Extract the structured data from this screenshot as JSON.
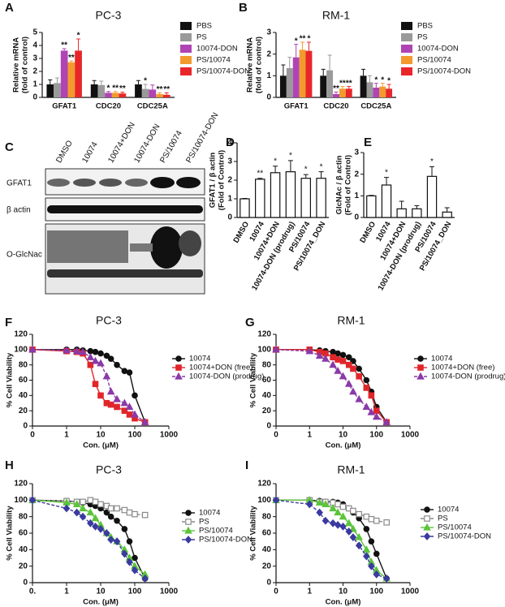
{
  "chart_data": [
    {
      "panel": "A",
      "type": "grouped_bar",
      "title": "PC-3",
      "ylabel": [
        "Relative mRNA",
        "(fold of control)"
      ],
      "categories": [
        "GFAT1",
        "CDC20",
        "CDC25A"
      ],
      "ylim": [
        0,
        5
      ],
      "yticks": [
        0,
        1,
        2,
        3,
        4,
        5
      ],
      "series": [
        {
          "name": "PBS",
          "color": "#111111",
          "values": [
            1,
            1,
            1
          ],
          "errors": [
            0.35,
            0.3,
            0.3
          ],
          "annotations": [
            null,
            null,
            null
          ]
        },
        {
          "name": "PS",
          "color": "#9a9a9a",
          "values": [
            1.1,
            0.95,
            0.65
          ],
          "errors": [
            0.4,
            0.3,
            0.35
          ],
          "annotations": [
            null,
            null,
            "*"
          ]
        },
        {
          "name": "10074-DON",
          "color": "#b044b4",
          "values": [
            3.6,
            0.35,
            0.6
          ],
          "errors": [
            0.15,
            0.1,
            0.35
          ],
          "annotations": [
            "**",
            "*",
            null
          ]
        },
        {
          "name": "PS/10074",
          "color": "#f39a2e",
          "values": [
            2.7,
            0.35,
            0.25
          ],
          "errors": [
            0.1,
            0.1,
            0.1
          ],
          "annotations": [
            "**",
            "**",
            "**"
          ]
        },
        {
          "name": "PS/10074-DON",
          "color": "#e8262a",
          "values": [
            3.6,
            0.3,
            0.2
          ],
          "errors": [
            0.9,
            0.1,
            0.15
          ],
          "annotations": [
            "*",
            "**",
            "**"
          ]
        }
      ]
    },
    {
      "panel": "B",
      "type": "grouped_bar",
      "title": "RM-1",
      "ylabel": [
        "Relative mRNA",
        "(fold of control)"
      ],
      "categories": [
        "GFAT1",
        "CDC20",
        "CDC25A"
      ],
      "ylim": [
        0,
        3
      ],
      "yticks": [
        0,
        1,
        2,
        3
      ],
      "series": [
        {
          "name": "PBS",
          "color": "#111111",
          "values": [
            1,
            1,
            1
          ],
          "errors": [
            0.5,
            0.3,
            0.3
          ],
          "annotations": [
            null,
            null,
            null
          ]
        },
        {
          "name": "PS",
          "color": "#9a9a9a",
          "values": [
            1.35,
            1.25,
            0.7
          ],
          "errors": [
            0.5,
            0.7,
            0.3
          ],
          "annotations": [
            null,
            null,
            null
          ]
        },
        {
          "name": "10074-DON",
          "color": "#b044b4",
          "values": [
            1.85,
            0.15,
            0.45
          ],
          "errors": [
            0.6,
            0.1,
            0.2
          ],
          "annotations": [
            "*",
            "**",
            "*"
          ]
        },
        {
          "name": "PS/10074",
          "color": "#f39a2e",
          "values": [
            2.2,
            0.4,
            0.5
          ],
          "errors": [
            0.35,
            0.1,
            0.15
          ],
          "annotations": [
            "**",
            "**",
            "*"
          ]
        },
        {
          "name": "PS/10074-DON",
          "color": "#e8262a",
          "values": [
            2.15,
            0.4,
            0.4
          ],
          "errors": [
            0.4,
            0.1,
            0.2
          ],
          "annotations": [
            "*",
            "**",
            "*"
          ]
        }
      ]
    },
    {
      "panel": "D",
      "type": "bar",
      "ylabel": [
        "GFAT1 / β actin",
        "(Fold of Control)"
      ],
      "categories": [
        "DMSO",
        "10074",
        "10074+DON",
        "10074-DON (prodrug)",
        "PS/10074",
        "PS/10074_DON"
      ],
      "values": [
        1,
        2.05,
        2.4,
        2.45,
        2.1,
        2.1
      ],
      "errors": [
        0.02,
        0.05,
        0.35,
        0.6,
        0.2,
        0.35
      ],
      "annotations": [
        null,
        "**",
        "*",
        "*",
        "*",
        "*"
      ],
      "ylim": [
        0,
        4
      ],
      "yticks": [
        0,
        1,
        2,
        3,
        4
      ]
    },
    {
      "panel": "E",
      "type": "bar",
      "ylabel": [
        "GlcNAc / β actin",
        "(Fold of Control)"
      ],
      "categories": [
        "DMSO",
        "10074",
        "10074+DON",
        "10074-DON (prodrug)",
        "PS/10074",
        "PS/10074_DON"
      ],
      "values": [
        1,
        1.5,
        0.4,
        0.4,
        1.9,
        0.25
      ],
      "errors": [
        0.02,
        0.35,
        0.35,
        0.15,
        0.45,
        0.2
      ],
      "annotations": [
        null,
        "*",
        null,
        null,
        "*",
        null
      ],
      "ylim": [
        0,
        3
      ],
      "yticks": [
        0,
        1,
        2,
        3
      ]
    },
    {
      "panel": "F",
      "type": "line",
      "title": "PC-3",
      "xlabel": "Con. (μM)",
      "ylabel": "% Cell Viability",
      "log_x": true,
      "x": [
        0,
        1,
        2,
        3,
        5,
        7,
        10,
        15,
        20,
        30,
        50,
        70,
        100,
        200
      ],
      "xlim": [
        0,
        1000
      ],
      "xticks": [
        0,
        1,
        10,
        100,
        1000
      ],
      "ylim": [
        0,
        120
      ],
      "yticks": [
        0,
        20,
        40,
        60,
        80,
        100,
        120
      ],
      "series": [
        {
          "name": "10074",
          "color": "#111111",
          "marker": "circle",
          "dashed": false,
          "values": [
            100,
            100,
            100,
            99,
            98,
            97,
            95,
            92,
            88,
            80,
            72,
            70,
            40,
            5
          ]
        },
        {
          "name": "10074+DON (free)",
          "color": "#e0262a",
          "marker": "square",
          "dashed": false,
          "values": [
            100,
            98,
            97,
            95,
            80,
            55,
            40,
            30,
            28,
            25,
            20,
            15,
            10,
            5
          ]
        },
        {
          "name": "10074-DON (prodrug)",
          "color": "#8a3aa8",
          "marker": "triangle",
          "dashed": true,
          "values": [
            100,
            99,
            98,
            97,
            90,
            85,
            82,
            65,
            45,
            35,
            30,
            25,
            15,
            5
          ]
        }
      ]
    },
    {
      "panel": "G",
      "type": "line",
      "title": "RM-1",
      "xlabel": "Con. (μM)",
      "ylabel": "% Cell Viability",
      "log_x": true,
      "x": [
        0,
        1,
        2,
        3,
        5,
        7,
        10,
        15,
        20,
        30,
        50,
        70,
        100,
        200
      ],
      "xlim": [
        0,
        1000
      ],
      "xticks": [
        0,
        1,
        10,
        100,
        1000
      ],
      "ylim": [
        0,
        120
      ],
      "yticks": [
        0,
        20,
        40,
        60,
        80,
        100,
        120
      ],
      "series": [
        {
          "name": "10074",
          "color": "#111111",
          "marker": "circle",
          "dashed": false,
          "values": [
            100,
            100,
            99,
            98,
            97,
            95,
            93,
            90,
            85,
            75,
            60,
            45,
            25,
            5
          ]
        },
        {
          "name": "10074+DON (free)",
          "color": "#e0262a",
          "marker": "square",
          "dashed": false,
          "values": [
            100,
            100,
            97,
            95,
            90,
            87,
            85,
            80,
            75,
            65,
            50,
            40,
            20,
            5
          ]
        },
        {
          "name": "10074-DON (prodrug)",
          "color": "#8a3aa8",
          "marker": "triangle",
          "dashed": true,
          "values": [
            100,
            98,
            92,
            88,
            80,
            72,
            65,
            55,
            45,
            35,
            25,
            18,
            12,
            5
          ]
        }
      ]
    },
    {
      "panel": "H",
      "type": "line",
      "title": "PC-3",
      "xlabel": "Con. (μM)",
      "ylabel": "% Cell Viability",
      "log_x": true,
      "x": [
        0,
        1,
        2,
        3,
        5,
        7,
        10,
        15,
        20,
        30,
        50,
        70,
        100,
        200
      ],
      "xlim": [
        0,
        1000
      ],
      "xticks": [
        {
          "value": 0,
          "label": "0."
        },
        1,
        10,
        100,
        1000
      ],
      "ylim": [
        0,
        120
      ],
      "yticks": [
        0,
        20,
        40,
        60,
        80,
        100,
        120
      ],
      "series": [
        {
          "name": "10074",
          "color": "#111111",
          "marker": "circle",
          "dashed": false,
          "values": [
            100,
            99,
            98,
            97,
            95,
            93,
            90,
            85,
            80,
            75,
            65,
            50,
            30,
            5
          ]
        },
        {
          "name": "PS",
          "color": "#8a8a8a",
          "marker": "square-open",
          "dashed": true,
          "values": [
            100,
            99,
            98,
            98,
            100,
            98,
            95,
            93,
            90,
            90,
            88,
            85,
            83,
            82
          ]
        },
        {
          "name": "PS/10074",
          "color": "#5cc43a",
          "marker": "triangle",
          "dashed": false,
          "values": [
            100,
            97,
            95,
            90,
            85,
            78,
            70,
            60,
            55,
            50,
            40,
            30,
            20,
            10
          ]
        },
        {
          "name": "PS/10074-DON",
          "color": "#3a3aa0",
          "marker": "diamond",
          "dashed": true,
          "values": [
            100,
            90,
            85,
            80,
            72,
            68,
            65,
            60,
            52,
            50,
            35,
            25,
            15,
            5
          ]
        }
      ]
    },
    {
      "panel": "I",
      "type": "line",
      "title": "RM-1",
      "xlabel": "Con. (μM)",
      "ylabel": "% Cell Viability",
      "log_x": true,
      "x": [
        0,
        1,
        2,
        3,
        5,
        7,
        10,
        15,
        20,
        30,
        50,
        70,
        100,
        200
      ],
      "xlim": [
        0,
        1000
      ],
      "xticks": [
        0,
        1,
        10,
        100,
        1000
      ],
      "ylim": [
        0,
        120
      ],
      "yticks": [
        0,
        20,
        40,
        60,
        80,
        100,
        120
      ],
      "series": [
        {
          "name": "10074",
          "color": "#111111",
          "marker": "circle",
          "dashed": false,
          "values": [
            100,
            100,
            99,
            98,
            98,
            97,
            95,
            90,
            85,
            78,
            65,
            50,
            35,
            5
          ]
        },
        {
          "name": "PS",
          "color": "#8a8a8a",
          "marker": "square-open",
          "dashed": true,
          "values": [
            100,
            100,
            98,
            98,
            97,
            95,
            92,
            90,
            87,
            83,
            80,
            77,
            75,
            73
          ]
        },
        {
          "name": "PS/10074",
          "color": "#5cc43a",
          "marker": "triangle",
          "dashed": false,
          "values": [
            100,
            100,
            97,
            95,
            90,
            85,
            80,
            72,
            65,
            55,
            40,
            25,
            15,
            5
          ]
        },
        {
          "name": "PS/10074-DON",
          "color": "#3a3aa0",
          "marker": "diamond",
          "dashed": true,
          "values": [
            100,
            95,
            85,
            75,
            72,
            70,
            68,
            62,
            55,
            45,
            32,
            20,
            10,
            5
          ]
        }
      ]
    }
  ],
  "blot": {
    "panel": "C",
    "lanes": [
      "DMSO",
      "10074",
      "10074+DON",
      "10074-DON",
      "PS/10074",
      "PS/10074-DON"
    ],
    "rows": [
      "GFAT1",
      "β actin",
      "O-GlcNac"
    ]
  }
}
